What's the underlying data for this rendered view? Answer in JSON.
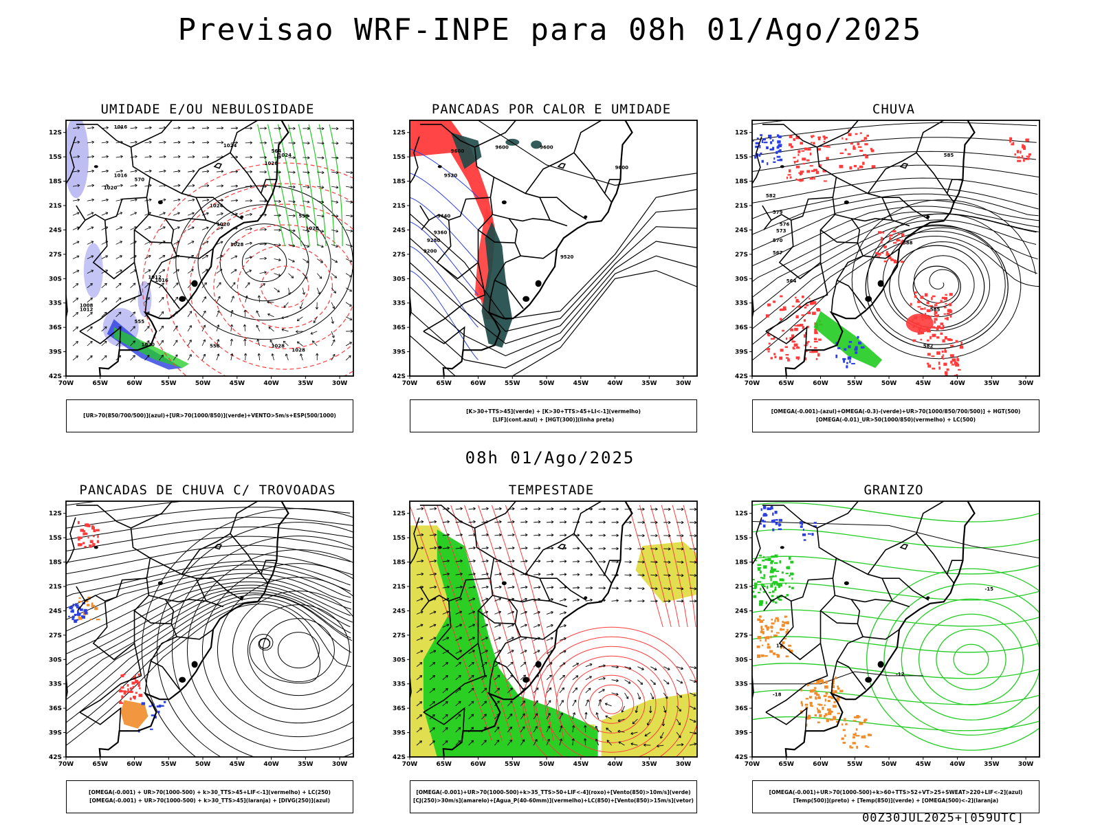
{
  "title": "Previsao WRF-INPE  para 08h 01/Ago/2025",
  "mid_time": "08h 01/Ago/2025",
  "footer": "00Z30JUL2025+[059UTC]",
  "axes": {
    "lat_labels": [
      "12S",
      "15S",
      "18S",
      "21S",
      "24S",
      "27S",
      "30S",
      "33S",
      "36S",
      "39S",
      "42S"
    ],
    "lon_labels": [
      "70W",
      "65W",
      "60W",
      "55W",
      "50W",
      "45W",
      "40W",
      "35W",
      "30W"
    ]
  },
  "colors": {
    "red": "#ff3b3b",
    "blue": "#2a3fe0",
    "lavender": "#b7b7f2",
    "green": "#21cc21",
    "dark_teal": "#1e4a48",
    "yellow": "#dedc3c",
    "orange": "#f08c2a"
  },
  "panels": [
    {
      "id": "umidade",
      "title": "UMIDADE E/OU NEBULOSIDADE",
      "legend": [
        "[UR>70(850/700/500)](azul)+[UR>70(1000/850)](verde)+VENTO>5m/s+ESP(500/1000)"
      ],
      "contour_labels": [
        "1016",
        "1016",
        "1020",
        "1024",
        "1026",
        "1024",
        "1020",
        "1028",
        "1028",
        "1024",
        "1028",
        "1012",
        "1016",
        "1008",
        "1012",
        "1020",
        "1028",
        "564",
        "558",
        "555",
        "558",
        "570"
      ]
    },
    {
      "id": "pancadas",
      "title": "PANCADAS POR CALOR E UMIDADE",
      "legend": [
        "[K>30+TTS>45](verde) + [K>30+TTS>45+LI<-1](vermelho)",
        "[LIF](cont.azul) + [HGT(300)](linha preta)"
      ],
      "contour_labels": [
        "9600",
        "9600",
        "9600",
        "9600",
        "9520",
        "9440",
        "9360",
        "9280",
        "9200",
        "9520"
      ]
    },
    {
      "id": "chuva",
      "title": "CHUVA",
      "legend": [
        "[OMEGA(-0.001)-(azul)+OMEGA(-0.3)-(verde)+UR>70(1000/850/700/500)] + HGT(500)",
        "[OMEGA(-0.01)_UR>50(1000/850)(vermelho) + LC(500)"
      ],
      "contour_labels": [
        "585",
        "582",
        "579",
        "576",
        "573",
        "570",
        "567",
        "564",
        "588",
        "585",
        "582"
      ]
    },
    {
      "id": "trovoadas",
      "title": "PANCADAS DE CHUVA C/ TROVOADAS",
      "legend": [
        "[OMEGA(-0.001) + UR>70(1000-500) + k>30_TTS>45+LIF<-1](vermelho) + LC(250)",
        "[OMEGA(-0.001) + UR>70(1000-500) + k>30_TTS>45](laranja) + [DIVG(250)](azul)"
      ],
      "contour_labels": []
    },
    {
      "id": "tempestade",
      "title": "TEMPESTADE",
      "legend": [
        "[OMEGA(-0.001)+UR>70(1000-500)+k>35_TTS>50+LIF<-4](roxo)+[Vento(850)>10m/s](verde)",
        "[CJ(250)>30m/s](amarelo)+[Agua_P(40-60mm)](vermelho)+LC(850)+[Vento(850)>15m/s](vetor)"
      ],
      "contour_labels": []
    },
    {
      "id": "granizo",
      "title": "GRANIZO",
      "legend": [
        "[OMEGA(-0.001)+UR>70(1000-500)+k>60+TTS>52+VT>25+SWEAT>220+LIF<-2](azul)",
        "[Temp(500)](preto) + [Temp(850)](verde) + [OMEGA(500)<-2](laranja)"
      ],
      "contour_labels": [
        "-15",
        "-12",
        "-18",
        "12"
      ]
    }
  ]
}
